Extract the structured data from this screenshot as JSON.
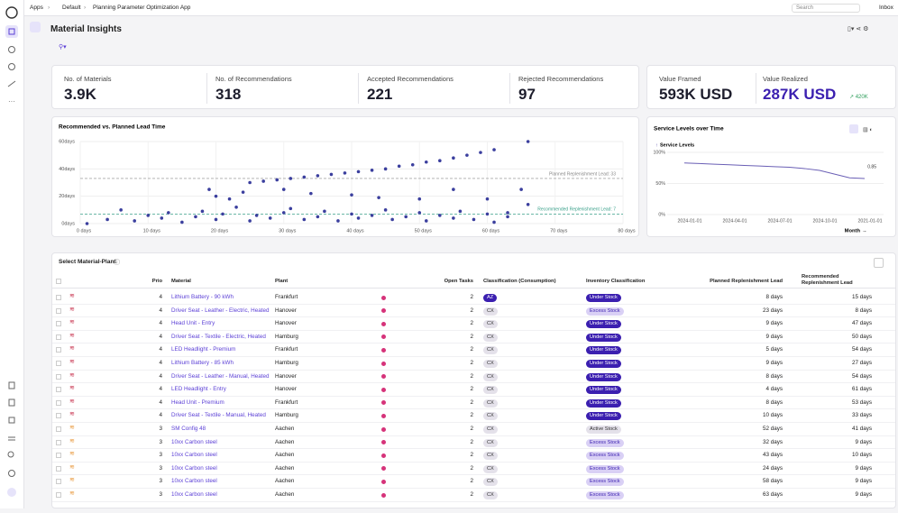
{
  "topbar": {
    "breadcrumbs": [
      "Apps",
      "Default",
      "Planning Parameter Optimization App"
    ],
    "search": "Search",
    "inbox": "Inbox"
  },
  "header": {
    "title": "Material Insights"
  },
  "kpis": [
    {
      "label": "No. of Materials",
      "value": "3.9K"
    },
    {
      "label": "No. of Recommendations",
      "value": "318"
    },
    {
      "label": "Accepted Recommendations",
      "value": "221"
    },
    {
      "label": "Rejected Recommendations",
      "value": "97"
    }
  ],
  "value_kpis": [
    {
      "label": "Value Framed",
      "value": "593K USD"
    },
    {
      "label": "Value Realized",
      "value": "287K USD",
      "delta": "↗ 420K"
    }
  ],
  "chart_data": [
    {
      "type": "scatter",
      "title": "Recommended vs. Planned Lead Time",
      "color": "#3b3f9e",
      "grid": true,
      "x": [
        1,
        4,
        6,
        8,
        10,
        12,
        13,
        15,
        17,
        18,
        20,
        21,
        23,
        25,
        26,
        28,
        30,
        31,
        33,
        35,
        36,
        38,
        40,
        41,
        43,
        45,
        46,
        48,
        50,
        51,
        53,
        55,
        56,
        58,
        60,
        61,
        63,
        19,
        20,
        22,
        24,
        30,
        34,
        40,
        44,
        50,
        55,
        60,
        65,
        66,
        63,
        25,
        27,
        29,
        31,
        33,
        35,
        37,
        39,
        41,
        43,
        45,
        47,
        49,
        51,
        53,
        55,
        57,
        59,
        61,
        66
      ],
      "values": [
        0,
        3,
        10,
        2,
        6,
        4,
        8,
        1,
        5,
        9,
        3,
        7,
        12,
        2,
        6,
        4,
        8,
        11,
        3,
        5,
        9,
        2,
        7,
        4,
        6,
        10,
        3,
        5,
        8,
        2,
        6,
        4,
        9,
        3,
        7,
        1,
        5,
        25,
        20,
        18,
        23,
        25,
        22,
        21,
        19,
        18,
        25,
        18,
        25,
        14,
        8,
        30,
        31,
        32,
        33,
        34,
        35,
        36,
        37,
        38,
        39,
        40,
        42,
        43,
        45,
        46,
        48,
        50,
        52,
        54,
        60
      ],
      "xlim": [
        0,
        80
      ],
      "xticks": [
        {
          "value": 0,
          "label": "0 days"
        },
        {
          "value": 10,
          "label": "10 days"
        },
        {
          "value": 20,
          "label": "20 days"
        },
        {
          "value": 30,
          "label": "30 days"
        },
        {
          "value": 40,
          "label": "40 days"
        },
        {
          "value": 50,
          "label": "50 days"
        },
        {
          "value": 60,
          "label": "60 days"
        },
        {
          "value": 70,
          "label": "70 days"
        },
        {
          "value": 80,
          "label": "80 days"
        }
      ],
      "ylim": [
        0,
        60
      ],
      "yticks": [
        {
          "value": 0,
          "label": "0days"
        },
        {
          "value": 20,
          "label": "20days"
        },
        {
          "value": 40,
          "label": "40days"
        },
        {
          "value": 60,
          "label": "60days"
        }
      ],
      "reference_lines": [
        {
          "value": 33,
          "label": "Planned Replenishment Lead: 33",
          "color": "#888888"
        },
        {
          "value": 7,
          "label": "Recommended Replenishment Lead: 7",
          "color": "#3aa08a"
        }
      ]
    },
    {
      "type": "line",
      "title": "Service Levels over Time",
      "categories": [
        "2024-01-01",
        null,
        null,
        "2024-04-01",
        null,
        null,
        "2024-07-01",
        null,
        null,
        "2024-10-01",
        null,
        null,
        "2021-01-01"
      ],
      "series": [
        {
          "name": "Service Levels",
          "color": "#6a5fb5",
          "values": [
            83,
            82,
            81,
            80,
            79,
            78,
            77,
            76,
            74,
            71,
            65,
            59,
            58
          ]
        }
      ],
      "ylim": [
        0,
        100
      ],
      "yticks": [
        {
          "value": 0,
          "label": "0%"
        },
        {
          "value": 50,
          "label": "50%"
        },
        {
          "value": 100,
          "label": "100%"
        }
      ],
      "grid": true,
      "annotation": "0.85",
      "x_menu": "Month"
    }
  ],
  "table": {
    "title": "Select Material-Plant",
    "columns": [
      "Prio",
      "Material",
      "Plant",
      "Open Tasks",
      "Classification (Consumption)",
      "Inventory Classification",
      "Planned Replenishment Lead",
      "Recommended Replenishment Lead"
    ],
    "rows": [
      [
        "4",
        "Lithium Battery - 90 kWh",
        "Frankfurt",
        "2",
        "AZ",
        "Under Stock",
        "8 days",
        "15 days"
      ],
      [
        "4",
        "Driver Seat - Leather - Electric, Heated",
        "Hanover",
        "2",
        "CX",
        "Excess Stock",
        "23 days",
        "8 days"
      ],
      [
        "4",
        "Head Unit - Entry",
        "Hanover",
        "2",
        "CX",
        "Under Stock",
        "9 days",
        "47 days"
      ],
      [
        "4",
        "Driver Seat - Textile - Electric, Heated",
        "Hamburg",
        "2",
        "CX",
        "Under Stock",
        "9 days",
        "50 days"
      ],
      [
        "4",
        "LED Headlight - Premium",
        "Frankfurt",
        "2",
        "CX",
        "Under Stock",
        "5 days",
        "54 days"
      ],
      [
        "4",
        "Lithium Battery - 85 kWh",
        "Hamburg",
        "2",
        "CX",
        "Under Stock",
        "9 days",
        "27 days"
      ],
      [
        "4",
        "Driver Seat - Leather - Manual, Heated",
        "Hanover",
        "2",
        "CX",
        "Under Stock",
        "8 days",
        "54 days"
      ],
      [
        "4",
        "LED Headlight - Entry",
        "Hanover",
        "2",
        "CX",
        "Under Stock",
        "4 days",
        "61 days"
      ],
      [
        "4",
        "Head Unit - Premium",
        "Frankfurt",
        "2",
        "CX",
        "Under Stock",
        "8 days",
        "53 days"
      ],
      [
        "4",
        "Driver Seat - Textile - Manual, Heated",
        "Hamburg",
        "2",
        "CX",
        "Under Stock",
        "10 days",
        "33 days"
      ],
      [
        "3",
        "SM Config 48",
        "Aachen",
        "2",
        "CX",
        "Active Stock",
        "52 days",
        "41 days"
      ],
      [
        "3",
        "10xx Carbon steel",
        "Aachen",
        "2",
        "CX",
        "Excess Stock",
        "32 days",
        "9 days"
      ],
      [
        "3",
        "10xx Carbon steel",
        "Aachen",
        "2",
        "CX",
        "Excess Stock",
        "43 days",
        "10 days"
      ],
      [
        "3",
        "10xx Carbon steel",
        "Aachen",
        "2",
        "CX",
        "Excess Stock",
        "24 days",
        "9 days"
      ],
      [
        "3",
        "10xx Carbon steel",
        "Aachen",
        "2",
        "CX",
        "Excess Stock",
        "58 days",
        "9 days"
      ],
      [
        "3",
        "10xx Carbon steel",
        "Aachen",
        "2",
        "CX",
        "Excess Stock",
        "63 days",
        "9 days"
      ]
    ]
  }
}
